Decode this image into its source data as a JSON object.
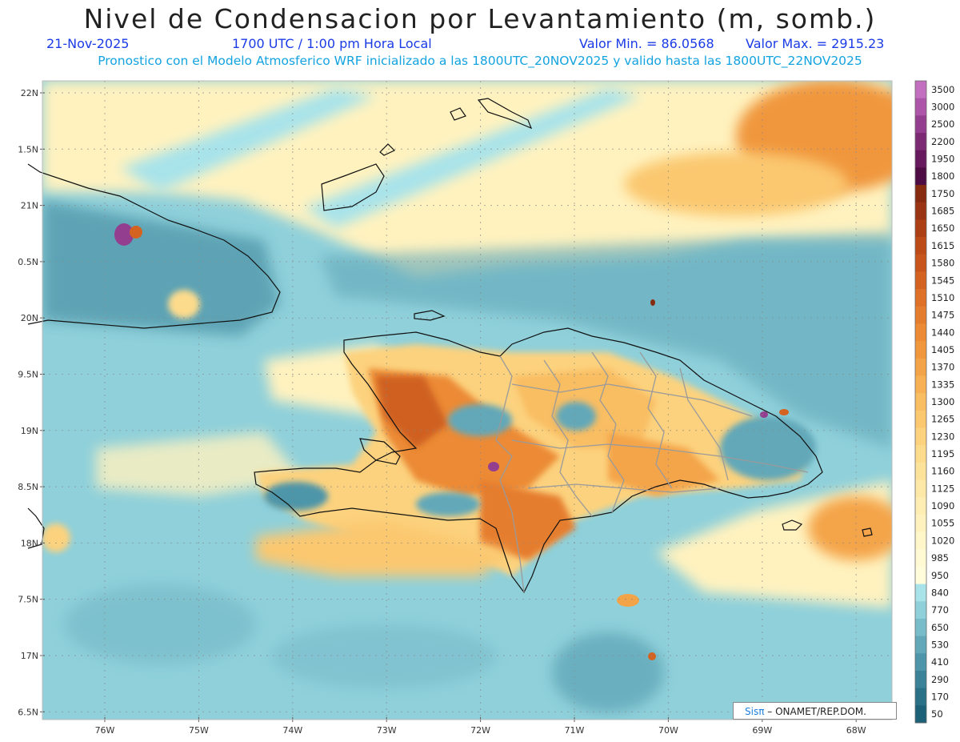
{
  "title": "Nivel de Condensacion por Levantamiento (m, somb.)",
  "date": "21-Nov-2025",
  "time": "1700 UTC / 1:00 pm Hora Local",
  "min_label": "Valor Min. = 86.0568",
  "max_label": "Valor Max. = 2915.23",
  "forecast_line": "Pronostico con el Modelo Atmosferico WRF inicializado a las 1800UTC_20NOV2025 y valido hasta las  1800UTC_22NOV2025",
  "lat_labels": [
    "22N",
    "1.5N",
    "21N",
    "0.5N",
    "20N",
    "9.5N",
    "19N",
    "8.5N",
    "18N",
    "7.5N",
    "17N",
    "6.5N"
  ],
  "lon_labels": [
    "76W",
    "75W",
    "74W",
    "73W",
    "72W",
    "71W",
    "70W",
    "69W",
    "68W"
  ],
  "colorbar": {
    "labels": [
      "3500",
      "3000",
      "2500",
      "2200",
      "1950",
      "1800",
      "1750",
      "1685",
      "1650",
      "1615",
      "1580",
      "1545",
      "1510",
      "1475",
      "1440",
      "1405",
      "1370",
      "1335",
      "1300",
      "1265",
      "1230",
      "1195",
      "1160",
      "1125",
      "1090",
      "1055",
      "1020",
      "985",
      "950",
      "840",
      "770",
      "650",
      "530",
      "410",
      "290",
      "170",
      "50"
    ],
    "colors": [
      "#c36fbf",
      "#ad55a8",
      "#943e8f",
      "#7d2a74",
      "#66195c",
      "#4e0c44",
      "#862b10",
      "#9a3412",
      "#ac3f14",
      "#bc4b18",
      "#c8561c",
      "#d46322",
      "#de7028",
      "#e57d2e",
      "#ec8a35",
      "#f0973e",
      "#f4a448",
      "#f7b154",
      "#f9bd62",
      "#fbc870",
      "#fcd27e",
      "#fddb8c",
      "#fde29a",
      "#fee8a7",
      "#ffeeb3",
      "#fff2bf",
      "#fff6ca",
      "#fff9d4",
      "#fffcdc",
      "#a8e3ea",
      "#8fd0da",
      "#78bcca",
      "#62a8b9",
      "#4e95a9",
      "#3b8298",
      "#2a7087",
      "#1d6178"
    ]
  },
  "credit_brand": "Sisπ",
  "credit_text": "–  ONAMET/REP.DOM."
}
